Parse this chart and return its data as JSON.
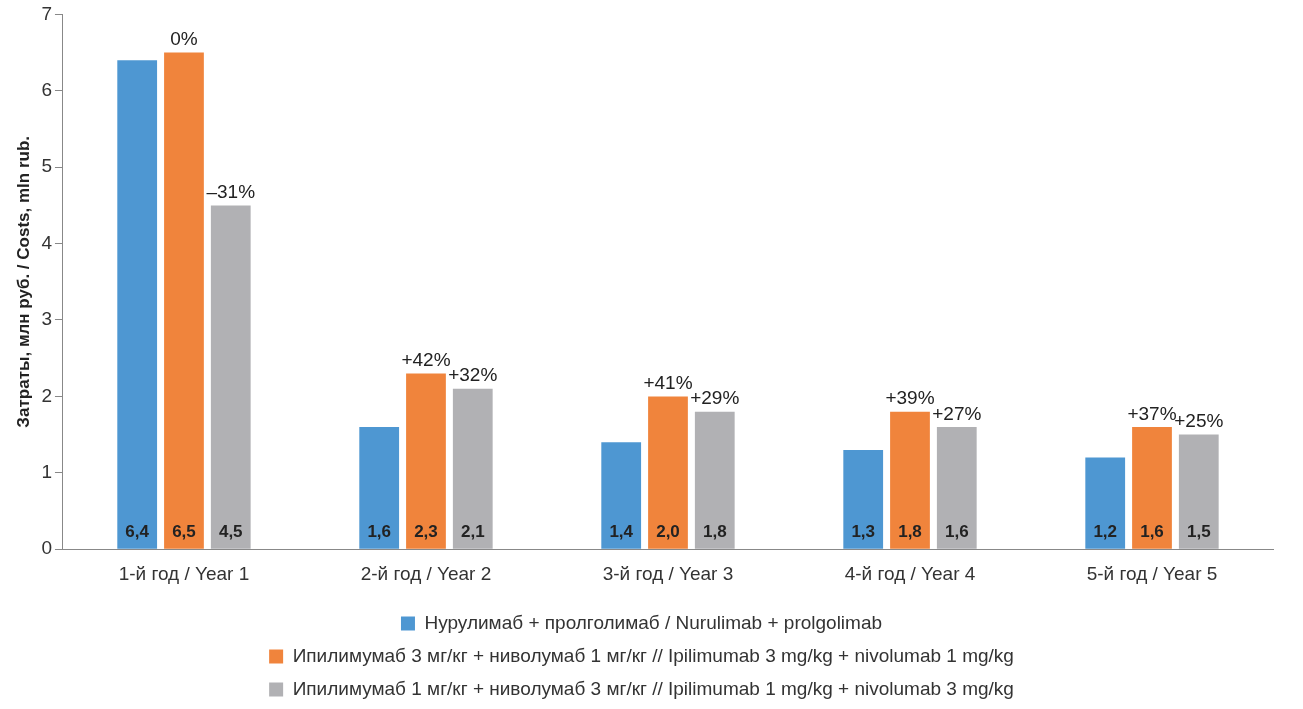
{
  "chart_data": {
    "type": "bar",
    "ylabel": "Затраты, млн руб. / Costs, mln rub.",
    "categories": [
      "1-й год / Year 1",
      "2-й год / Year 2",
      "3-й год / Year 3",
      "4-й год / Year 4",
      "5-й год / Year 5"
    ],
    "series": [
      {
        "name": "Нурулимаб + пролголимаб / Nurulimab + prolgolimab",
        "color": "#4e97d2",
        "values": [
          6.4,
          1.6,
          1.4,
          1.3,
          1.2
        ],
        "value_labels": [
          "6,4",
          "1,6",
          "1,4",
          "1,3",
          "1,2"
        ]
      },
      {
        "name": "Ипилимумаб 3 мг/кг + ниволумаб 1 мг/кг // Ipilimumab 3 mg/kg + nivolumab 1 mg/kg",
        "color": "#f0843c",
        "values": [
          6.5,
          2.3,
          2.0,
          1.8,
          1.6
        ],
        "value_labels": [
          "6,5",
          "2,3",
          "2,0",
          "1,8",
          "1,6"
        ]
      },
      {
        "name": "Ипилимумаб 1 мг/кг + ниволумаб 3 мг/кг // Ipilimumab 1 mg/kg + nivolumab 3 mg/kg",
        "color": "#b1b1b4",
        "values": [
          4.5,
          2.1,
          1.8,
          1.6,
          1.5
        ],
        "value_labels": [
          "4,5",
          "2,1",
          "1,8",
          "1,6",
          "1,5"
        ]
      }
    ],
    "ylim": [
      0,
      7
    ],
    "yticks": [
      0,
      1,
      2,
      3,
      4,
      5,
      6,
      7
    ],
    "grid": false,
    "legend": "bottom",
    "annotations": [
      "0%",
      "–31%",
      "+42%",
      "+32%",
      "+41%",
      "+29%",
      "+39%",
      "+27%",
      "+37%",
      "+25%"
    ]
  }
}
